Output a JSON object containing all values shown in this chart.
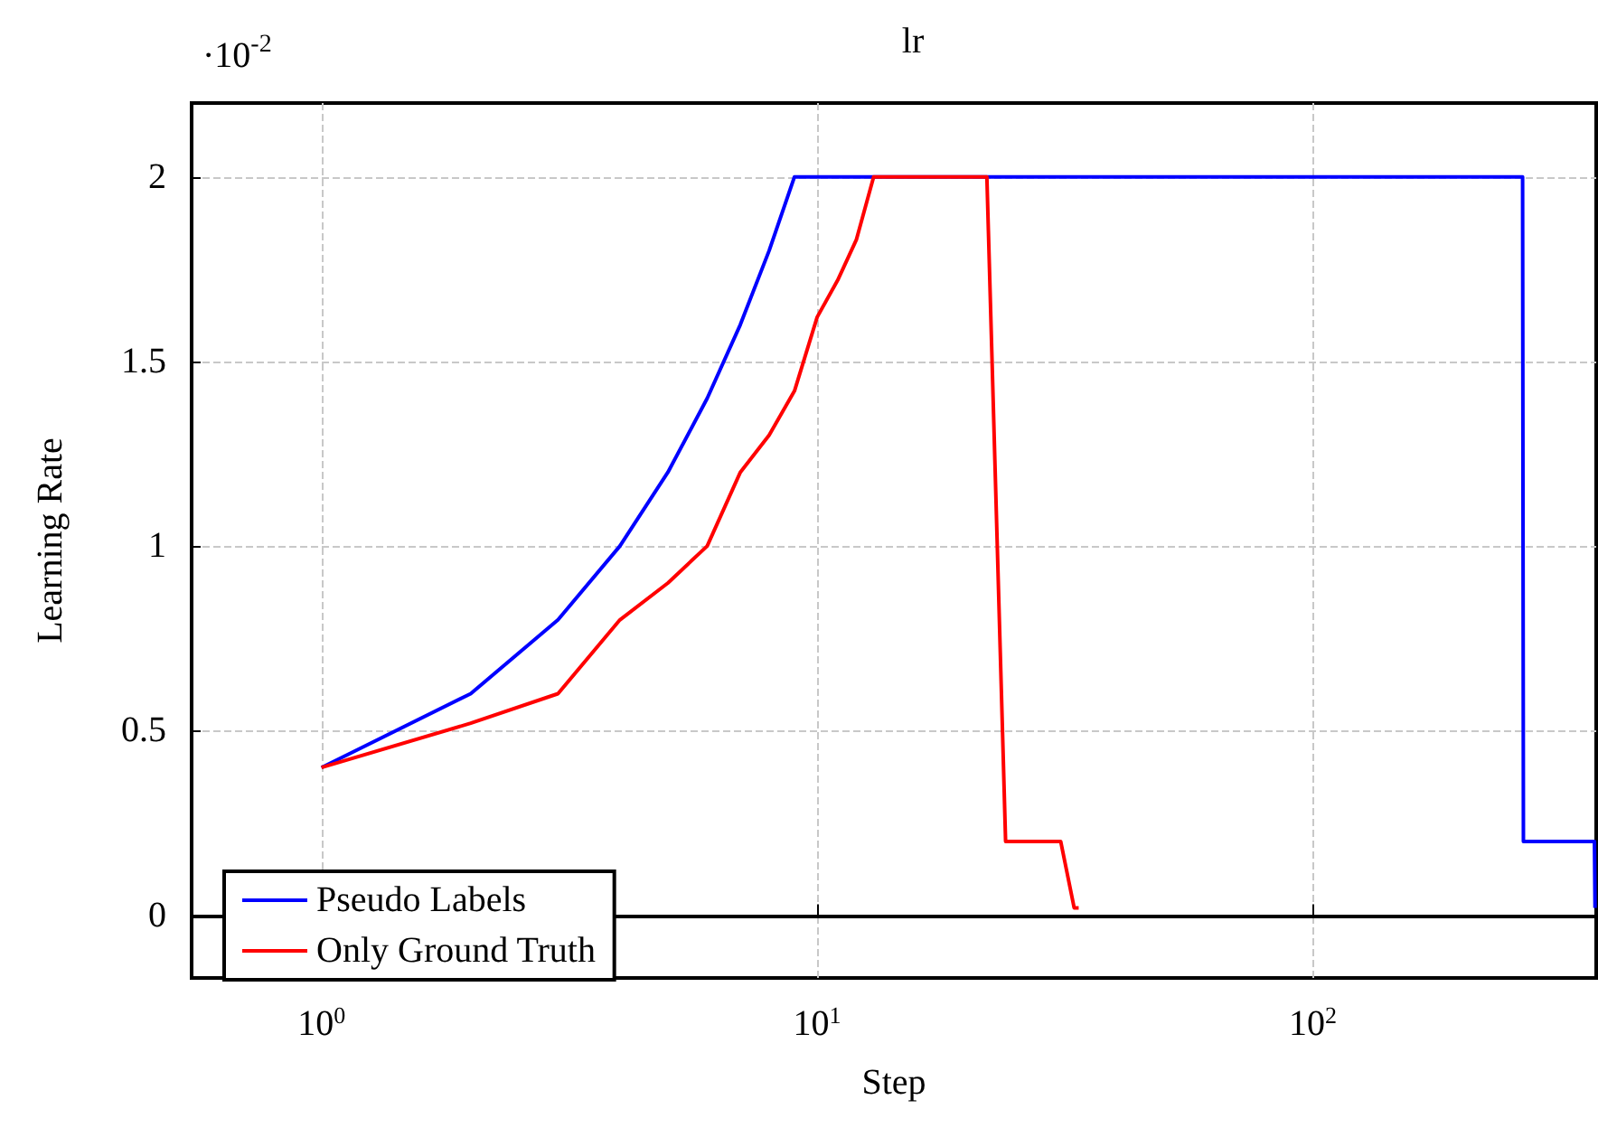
{
  "chart_data": {
    "type": "line",
    "title": "lr",
    "xlabel": "Step",
    "ylabel": "Learning Rate",
    "annotations": [
      "·10$^{-2}$"
    ],
    "log": "x",
    "grid": true,
    "legend": "bottom left",
    "marker": "none",
    "line_style": "solid",
    "xlim": [
      0.547,
      373
    ],
    "xticks": [
      {
        "value": 1,
        "label": "10$^{0}$"
      },
      {
        "value": 10,
        "label": "10$^{1}$"
      },
      {
        "value": 100,
        "label": "10$^{2}$"
      }
    ],
    "ylim": [
      -0.17,
      2.2
    ],
    "yticks": [
      0,
      0.5,
      1,
      1.5,
      2
    ],
    "series": [
      {
        "name": "Pseudo Labels",
        "color": "#0000ff",
        "x": [
          1,
          2,
          3,
          4,
          5,
          6,
          7,
          8,
          9,
          100,
          265,
          266,
          300,
          370,
          371
        ],
        "values": [
          0.4,
          0.6,
          0.8,
          1.0,
          1.2,
          1.4,
          1.6,
          1.8,
          2.0,
          2.0,
          2.0,
          0.2,
          0.2,
          0.2,
          0.02
        ]
      },
      {
        "name": "Only Ground Truth",
        "color": "#ff0000",
        "x": [
          1,
          2,
          3,
          4,
          5,
          6,
          7,
          8,
          9,
          10,
          11,
          12,
          13,
          22,
          24,
          31,
          33,
          33.7
        ],
        "values": [
          0.4,
          0.52,
          0.6,
          0.8,
          0.9,
          1.0,
          1.2,
          1.3,
          1.42,
          1.62,
          1.72,
          1.83,
          2.0,
          2.0,
          0.2,
          0.2,
          0.02,
          0.02
        ]
      }
    ]
  }
}
